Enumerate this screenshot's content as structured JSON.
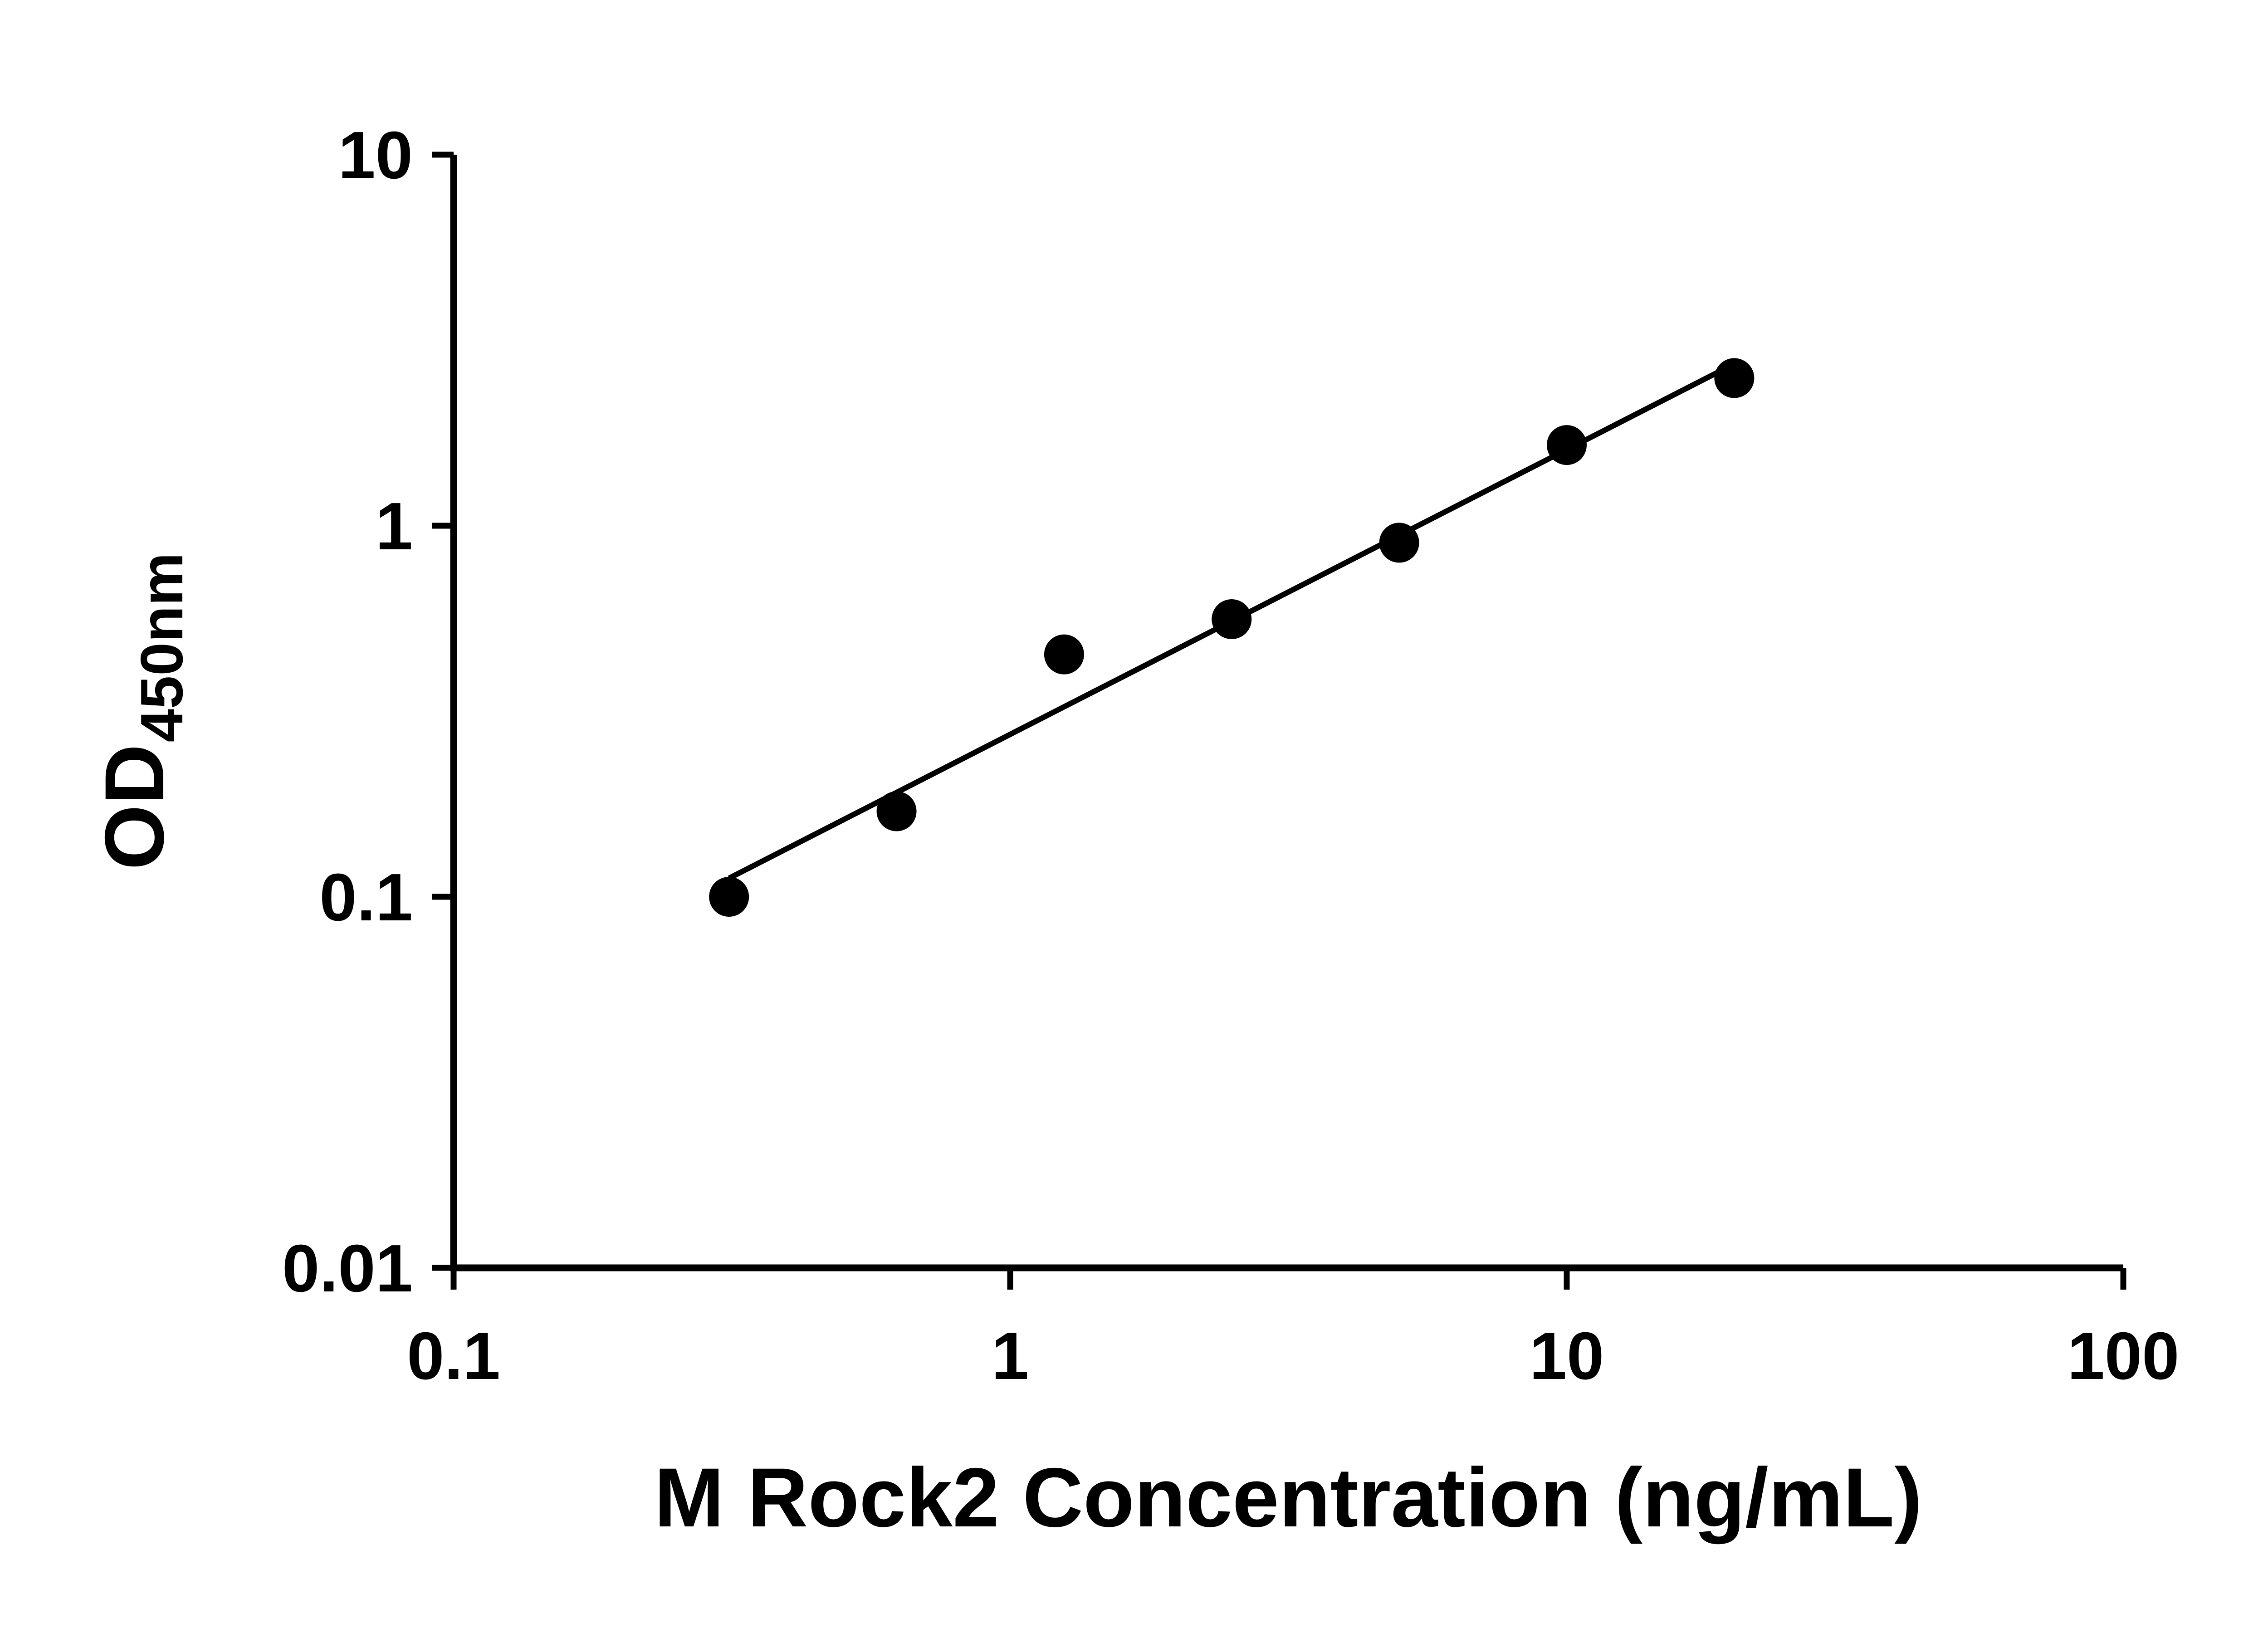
{
  "figure": {
    "background_color": "#ffffff",
    "foreground_color": "#000000"
  },
  "chart_data": {
    "type": "scatter",
    "title": "",
    "xlabel": "M Rock2 Concentration (ng/mL)",
    "ylabel_main": "OD",
    "ylabel_sub": "450nm",
    "x_scale": "log",
    "y_scale": "log",
    "x_range": [
      0.1,
      100
    ],
    "y_range": [
      0.01,
      10
    ],
    "grid": false,
    "legend": "none",
    "axis_color": "#000000",
    "x_ticks": [
      {
        "value": 0.1,
        "label": "0.1"
      },
      {
        "value": 1,
        "label": "1"
      },
      {
        "value": 10,
        "label": "10"
      },
      {
        "value": 100,
        "label": "100"
      }
    ],
    "y_ticks": [
      {
        "value": 0.01,
        "label": "0.01"
      },
      {
        "value": 0.1,
        "label": "0.1"
      },
      {
        "value": 1,
        "label": "1"
      },
      {
        "value": 10,
        "label": "10"
      }
    ],
    "series": [
      {
        "marker": "circle",
        "color": "#000000",
        "points": [
          {
            "x": 0.3125,
            "y": 0.1
          },
          {
            "x": 0.625,
            "y": 0.17
          },
          {
            "x": 1.25,
            "y": 0.45
          },
          {
            "x": 2.5,
            "y": 0.56
          },
          {
            "x": 5,
            "y": 0.9
          },
          {
            "x": 10,
            "y": 1.65
          },
          {
            "x": 20,
            "y": 2.5
          }
        ]
      }
    ],
    "trend_line": {
      "type": "log-log-linear-fit",
      "x_start": 0.3125,
      "x_end": 20,
      "color": "#000000"
    }
  }
}
